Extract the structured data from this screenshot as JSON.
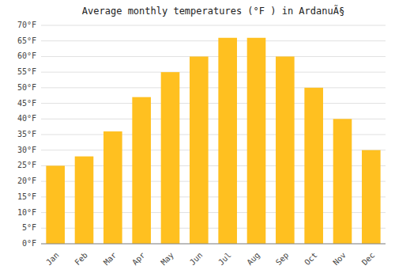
{
  "chart_data": {
    "type": "bar",
    "title": "Average monthly temperatures (°F ) in ArdanuÃ§",
    "categories": [
      "Jan",
      "Feb",
      "Mar",
      "Apr",
      "May",
      "Jun",
      "Jul",
      "Aug",
      "Sep",
      "Oct",
      "Nov",
      "Dec"
    ],
    "values": [
      25,
      28,
      36,
      47,
      55,
      60,
      66,
      66,
      60,
      50,
      40,
      30
    ],
    "color": "#FFC020",
    "ylim": [
      0,
      70
    ],
    "yticks": [
      {
        "value": 0,
        "label": "0°F"
      },
      {
        "value": 5,
        "label": "5°F"
      },
      {
        "value": 10,
        "label": "10°F"
      },
      {
        "value": 15,
        "label": "15°F"
      },
      {
        "value": 20,
        "label": "20°F"
      },
      {
        "value": 25,
        "label": "25°F"
      },
      {
        "value": 30,
        "label": "30°F"
      },
      {
        "value": 35,
        "label": "35°F"
      },
      {
        "value": 40,
        "label": "40°F"
      },
      {
        "value": 45,
        "label": "45°F"
      },
      {
        "value": 50,
        "label": "50°F"
      },
      {
        "value": 55,
        "label": "55°F"
      },
      {
        "value": 60,
        "label": "60°F"
      },
      {
        "value": 65,
        "label": "65°F"
      },
      {
        "value": 70,
        "label": "70°F"
      }
    ],
    "grid": true
  }
}
